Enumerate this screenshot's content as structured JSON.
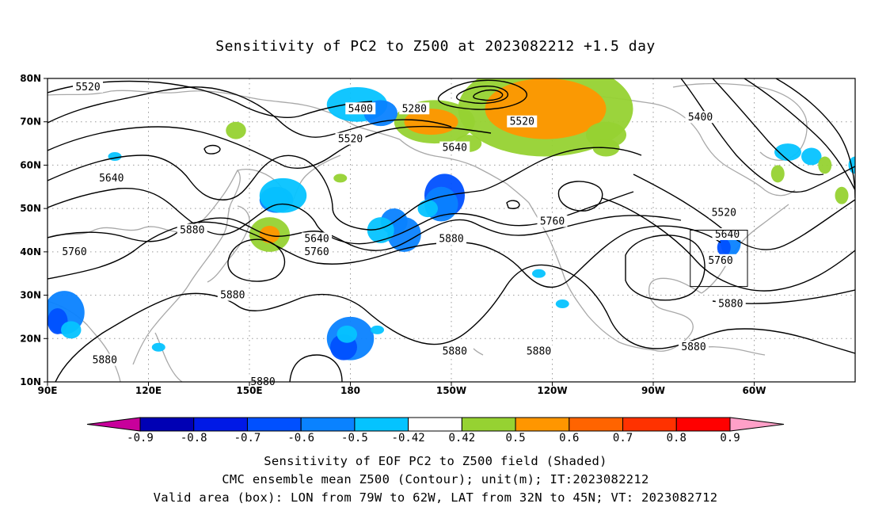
{
  "title": "Sensitivity of PC2 to Z500 at 2023082212 +1.5 day",
  "axes": {
    "lat_ticks": [
      "80N",
      "70N",
      "60N",
      "50N",
      "40N",
      "30N",
      "20N",
      "10N"
    ],
    "lon_ticks": [
      "90E",
      "120E",
      "150E",
      "180",
      "150W",
      "120W",
      "90W",
      "60W"
    ]
  },
  "contour_labels": [
    {
      "text": "5520",
      "lon": 102,
      "lat": 78
    },
    {
      "text": "5400",
      "lon": 183,
      "lat": 73
    },
    {
      "text": "5280",
      "lon": 199,
      "lat": 73
    },
    {
      "text": "5520",
      "lon": 180,
      "lat": 66
    },
    {
      "text": "5640",
      "lon": 211,
      "lat": 64
    },
    {
      "text": "5520",
      "lon": 231,
      "lat": 70
    },
    {
      "text": "5400",
      "lon": 284,
      "lat": 71
    },
    {
      "text": "5640",
      "lon": 109,
      "lat": 57
    },
    {
      "text": "5880",
      "lon": 133,
      "lat": 45
    },
    {
      "text": "5760",
      "lon": 98,
      "lat": 40
    },
    {
      "text": "5640",
      "lon": 170,
      "lat": 43
    },
    {
      "text": "5760",
      "lon": 170,
      "lat": 40
    },
    {
      "text": "5880",
      "lon": 210,
      "lat": 43
    },
    {
      "text": "5760",
      "lon": 240,
      "lat": 47
    },
    {
      "text": "5520",
      "lon": 291,
      "lat": 49
    },
    {
      "text": "5640",
      "lon": 292,
      "lat": 44
    },
    {
      "text": "5760",
      "lon": 290,
      "lat": 38
    },
    {
      "text": "5880",
      "lon": 145,
      "lat": 30
    },
    {
      "text": "5880",
      "lon": 293,
      "lat": 28
    },
    {
      "text": "5880",
      "lon": 211,
      "lat": 17
    },
    {
      "text": "5880",
      "lon": 236,
      "lat": 17
    },
    {
      "text": "5880",
      "lon": 282,
      "lat": 18
    },
    {
      "text": "5880",
      "lon": 107,
      "lat": 15
    },
    {
      "text": "5880",
      "lon": 154,
      "lat": 10
    }
  ],
  "valid_box": {
    "lon_min": -79,
    "lon_max": -62,
    "lat_min": 32,
    "lat_max": 45
  },
  "colorbar": {
    "labels": [
      "-0.9",
      "-0.8",
      "-0.7",
      "-0.6",
      "-0.5",
      "-0.42",
      "0.42",
      "0.5",
      "0.6",
      "0.7",
      "0.8",
      "0.9"
    ],
    "colors": [
      "#c8009b",
      "#0000b4",
      "#0019e6",
      "#0050ff",
      "#0a82ff",
      "#05c3ff",
      "#ffffff",
      "#96d232",
      "#ff9600",
      "#ff6400",
      "#ff3200",
      "#ff0000",
      "#ffa0c8"
    ]
  },
  "captions": {
    "line1": "Sensitivity of EOF PC2 to Z500 field (Shaded)",
    "line2": "CMC ensemble mean Z500 (Contour); unit(m); IT:2023082212",
    "line3": "Valid area (box): LON from 79W to 62W, LAT from 32N to 45N; VT: 2023082712"
  }
}
